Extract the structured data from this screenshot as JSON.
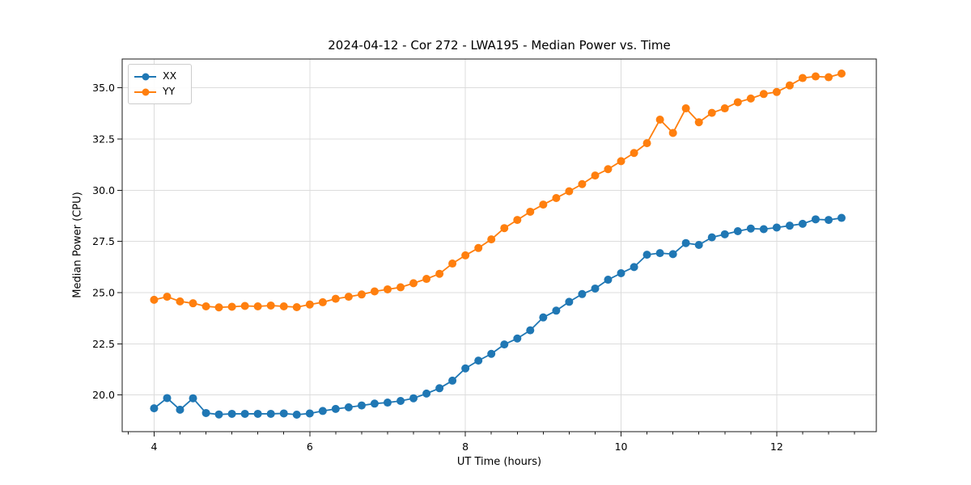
{
  "page": {
    "background": "#ffffff"
  },
  "chart_data": {
    "type": "line",
    "title": "2024-04-12 - Cor 272 - LWA195 - Median Power vs. Time",
    "xlabel": "UT Time (hours)",
    "ylabel": "Median Power (CPU)",
    "grid": true,
    "legend_position": "upper left",
    "xlim": [
      3.59,
      13.28
    ],
    "ylim": [
      18.21,
      36.41
    ],
    "xticks": {
      "major": [
        4,
        6,
        8,
        10,
        12
      ],
      "labels": [
        "4",
        "6",
        "8",
        "10",
        "12"
      ],
      "minor_step": 0.3333
    },
    "yticks": {
      "major": [
        20,
        22.5,
        25,
        27.5,
        30,
        32.5,
        35
      ],
      "labels": [
        "20.0",
        "22.5",
        "25.0",
        "27.5",
        "30.0",
        "32.5",
        "35.0"
      ]
    },
    "x": [
      4.0,
      4.167,
      4.333,
      4.5,
      4.667,
      4.833,
      5.0,
      5.167,
      5.333,
      5.5,
      5.667,
      5.833,
      6.0,
      6.167,
      6.333,
      6.5,
      6.667,
      6.833,
      7.0,
      7.167,
      7.333,
      7.5,
      7.667,
      7.833,
      8.0,
      8.167,
      8.333,
      8.5,
      8.667,
      8.833,
      9.0,
      9.167,
      9.333,
      9.5,
      9.667,
      9.833,
      10.0,
      10.167,
      10.333,
      10.5,
      10.667,
      10.833,
      11.0,
      11.167,
      11.333,
      11.5,
      11.667,
      11.833,
      12.0,
      12.167,
      12.333,
      12.5,
      12.667,
      12.833
    ],
    "series": [
      {
        "name": "XX",
        "color": "#1f77b4",
        "marker": "circle",
        "values": [
          19.35,
          19.85,
          19.28,
          19.84,
          19.12,
          19.05,
          19.08,
          19.08,
          19.08,
          19.08,
          19.1,
          19.04,
          19.1,
          19.22,
          19.32,
          19.4,
          19.49,
          19.58,
          19.63,
          19.71,
          19.84,
          20.07,
          20.33,
          20.7,
          21.3,
          21.68,
          22.01,
          22.47,
          22.76,
          23.16,
          23.79,
          24.12,
          24.55,
          24.93,
          25.2,
          25.63,
          25.95,
          26.25,
          26.85,
          26.93,
          26.88,
          27.42,
          27.33,
          27.7,
          27.85,
          28.0,
          28.13,
          28.1,
          28.18,
          28.27,
          28.36,
          28.58,
          28.55,
          28.65
        ]
      },
      {
        "name": "YY",
        "color": "#ff7f0e",
        "marker": "circle",
        "values": [
          24.65,
          24.8,
          24.57,
          24.48,
          24.33,
          24.28,
          24.31,
          24.35,
          24.33,
          24.37,
          24.33,
          24.29,
          24.42,
          24.53,
          24.7,
          24.8,
          24.91,
          25.06,
          25.16,
          25.26,
          25.46,
          25.67,
          25.92,
          26.42,
          26.82,
          27.18,
          27.6,
          28.15,
          28.55,
          28.95,
          29.3,
          29.62,
          29.95,
          30.3,
          30.72,
          31.03,
          31.42,
          31.82,
          32.3,
          33.45,
          32.8,
          34.0,
          33.32,
          33.78,
          34.0,
          34.3,
          34.48,
          34.7,
          34.8,
          35.12,
          35.48,
          35.56,
          35.52,
          35.7
        ]
      }
    ]
  }
}
